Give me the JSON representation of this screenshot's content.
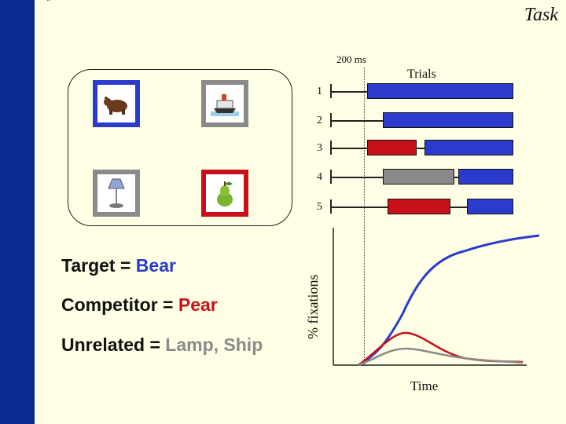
{
  "title": "Task",
  "timing_label": "200 ms",
  "trials_label": "Trials",
  "trial_numbers": [
    "1",
    "2",
    "3",
    "4",
    "5"
  ],
  "stimuli": [
    {
      "name": "bear",
      "frame_color": "#2b3bcc"
    },
    {
      "name": "ship",
      "frame_color": "#8a8a8a"
    },
    {
      "name": "lamp",
      "frame_color": "#8a8a8a"
    },
    {
      "name": "pear",
      "frame_color": "#c8101a"
    }
  ],
  "legend": {
    "target": {
      "label": "Target = ",
      "value": "Bear"
    },
    "competitor": {
      "label": "Competitor = ",
      "value": "Pear"
    },
    "unrelated": {
      "label": "Unrelated = ",
      "value": "Lamp, Ship"
    }
  },
  "plot": {
    "ylabel": "% fixations",
    "xlabel": "Time",
    "curves": [
      {
        "color": "#2b3bcc"
      },
      {
        "color": "#c8101a"
      },
      {
        "color": "#8a8a8a"
      }
    ]
  },
  "colors": {
    "blue": "#2b3bcc",
    "red": "#c8101a",
    "gray": "#8a8a8a",
    "navy": "#0b2a8f",
    "background": "#ffffe5"
  }
}
